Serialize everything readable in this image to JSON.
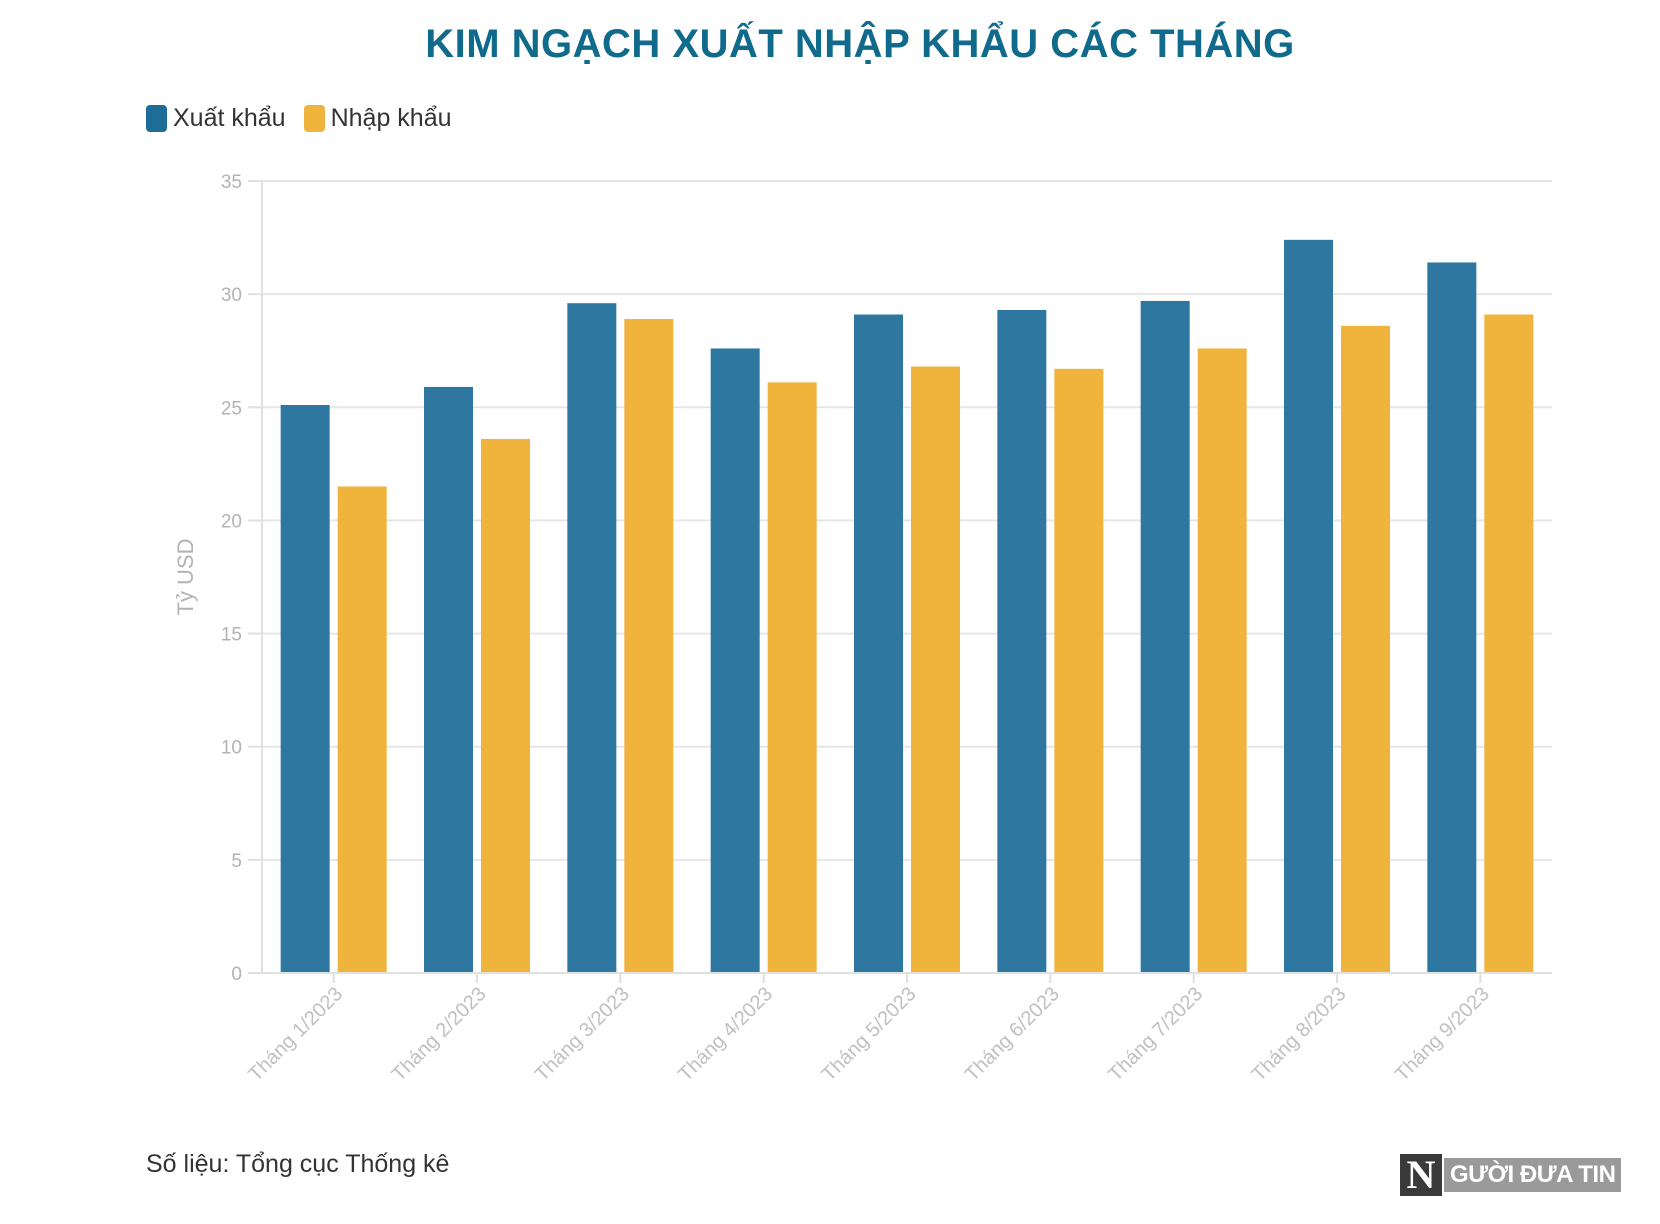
{
  "chart_data": {
    "type": "bar",
    "title": "KIM NGẠCH XUẤT NHẬP KHẨU CÁC THÁNG",
    "ylabel": "Tỷ USD",
    "xlabel": "",
    "ylim": [
      0,
      35
    ],
    "yticks": [
      0,
      5,
      10,
      15,
      20,
      25,
      30,
      35
    ],
    "grid": true,
    "legend_position": "top-left",
    "categories": [
      "Tháng 1/2023",
      "Tháng 2/2023",
      "Tháng 3/2023",
      "Tháng 4/2023",
      "Tháng 5/2023",
      "Tháng 6/2023",
      "Tháng 7/2023",
      "Tháng 8/2023",
      "Tháng 9/2023"
    ],
    "series": [
      {
        "name": "Xuất khẩu",
        "color": "#2e77a0",
        "values": [
          25.1,
          25.9,
          29.6,
          27.6,
          29.1,
          29.3,
          29.7,
          32.4,
          31.4
        ]
      },
      {
        "name": "Nhập khẩu",
        "color": "#f0b33c",
        "values": [
          21.5,
          23.6,
          28.9,
          26.1,
          26.8,
          26.7,
          27.6,
          28.6,
          29.1
        ]
      }
    ]
  },
  "source": "Số liệu: Tổng cục Thống kê",
  "logo": {
    "letter": "N",
    "text": "GƯỜI ĐƯA TIN"
  }
}
